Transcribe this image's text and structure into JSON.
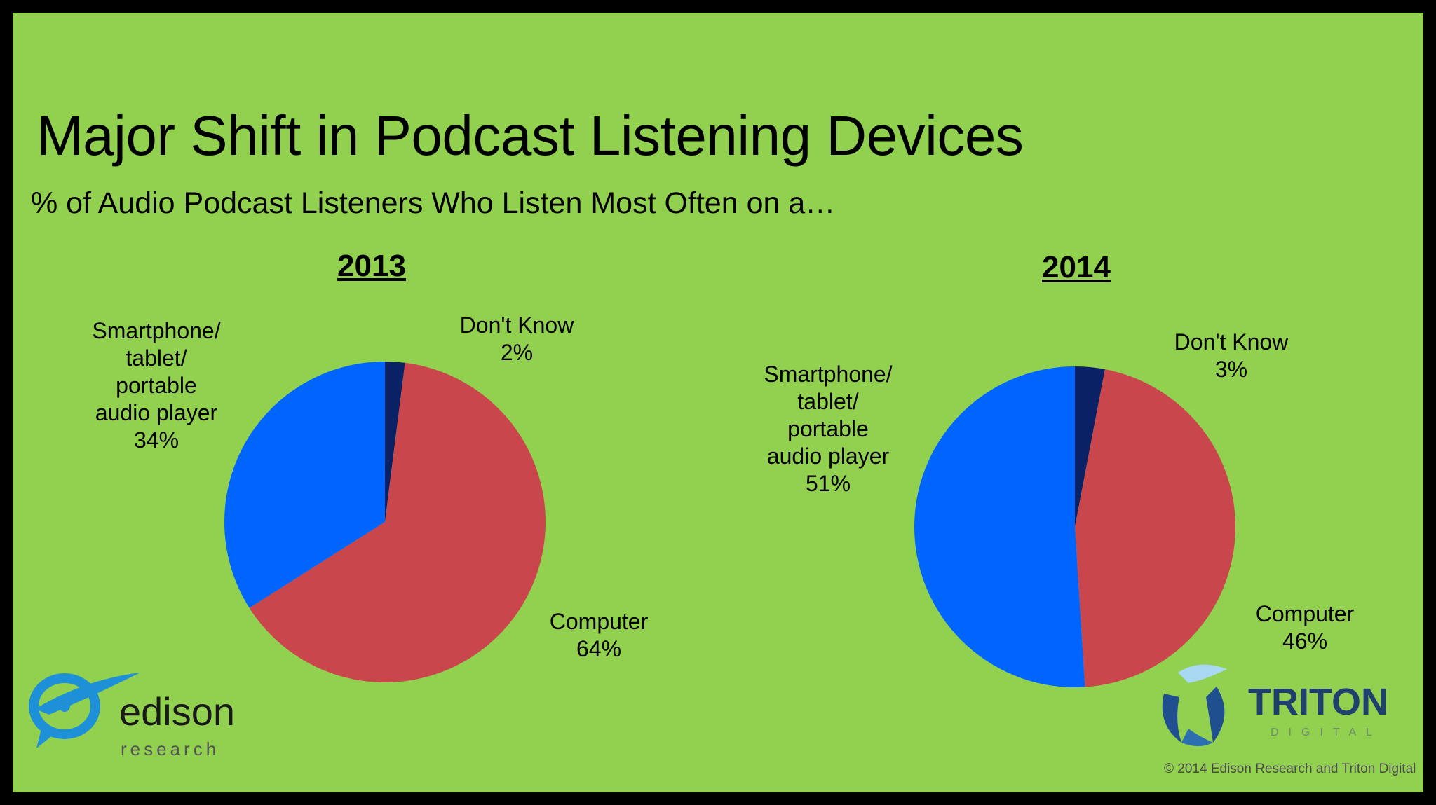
{
  "slide": {
    "title": "Major Shift in Podcast Listening Devices",
    "subtitle": "% of Audio Podcast Listeners Who Listen Most Often on a…",
    "background_color": "#92d050",
    "copyright": "© 2014 Edison Research and Triton Digital"
  },
  "logos": {
    "edison_word": "edison",
    "edison_sub": "research",
    "triton_word": "TRITON",
    "triton_sub": "DIGITAL"
  },
  "chart_data": [
    {
      "type": "pie",
      "title": "2013",
      "slices": [
        {
          "label": "Don't Know",
          "value": 2,
          "value_label": "2%",
          "color": "#0a2166"
        },
        {
          "label": "Computer",
          "value": 64,
          "value_label": "64%",
          "color": "#c9474c"
        },
        {
          "label": "Smartphone/\ntablet/\nportable\naudio player",
          "value": 34,
          "value_label": "34%",
          "color": "#0064ff"
        }
      ]
    },
    {
      "type": "pie",
      "title": "2014",
      "slices": [
        {
          "label": "Don't Know",
          "value": 3,
          "value_label": "3%",
          "color": "#0a2166"
        },
        {
          "label": "Computer",
          "value": 46,
          "value_label": "46%",
          "color": "#c9474c"
        },
        {
          "label": "Smartphone/\ntablet/\nportable\naudio player",
          "value": 51,
          "value_label": "51%",
          "color": "#0064ff"
        }
      ]
    }
  ]
}
